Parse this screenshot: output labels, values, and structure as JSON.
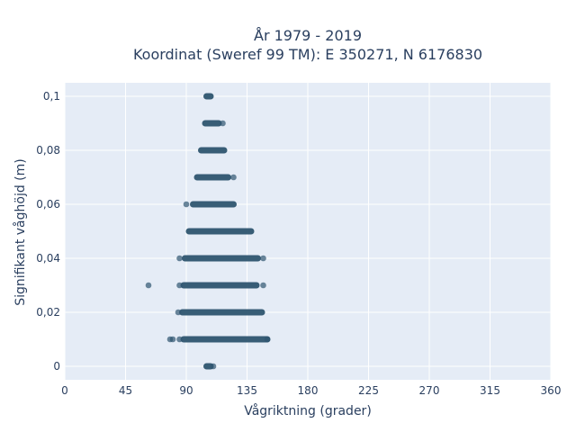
{
  "chart_data": {
    "type": "scatter",
    "title_line1": "År 1979 - 2019",
    "title_line2": "Koordinat (Sweref 99 TM): E 350271, N 6176830",
    "xlabel": "Vågriktning (grader)",
    "ylabel": "Signifikant våghöjd (m)",
    "xlim": [
      0,
      360
    ],
    "ylim": [
      -0.005,
      0.105
    ],
    "x_ticks": [
      0,
      45,
      90,
      135,
      180,
      225,
      270,
      315,
      360
    ],
    "x_tick_labels": [
      "0",
      "45",
      "90",
      "135",
      "180",
      "225",
      "270",
      "315",
      "360"
    ],
    "y_ticks": [
      0,
      0.02,
      0.04,
      0.06,
      0.08,
      0.1
    ],
    "y_tick_labels": [
      "0",
      "0,02",
      "0,04",
      "0,06",
      "0,08",
      "0,1"
    ],
    "grid": true,
    "marker_color": "#2f5670",
    "bands": [
      {
        "y": 0.0,
        "x_min": 105,
        "x_max": 108
      },
      {
        "y": 0.01,
        "x_min": 88,
        "x_max": 150
      },
      {
        "y": 0.02,
        "x_min": 87,
        "x_max": 146
      },
      {
        "y": 0.03,
        "x_min": 88,
        "x_max": 142
      },
      {
        "y": 0.04,
        "x_min": 89,
        "x_max": 143
      },
      {
        "y": 0.05,
        "x_min": 92,
        "x_max": 138
      },
      {
        "y": 0.06,
        "x_min": 95,
        "x_max": 125
      },
      {
        "y": 0.07,
        "x_min": 98,
        "x_max": 121
      },
      {
        "y": 0.08,
        "x_min": 101,
        "x_max": 118
      },
      {
        "y": 0.09,
        "x_min": 104,
        "x_max": 114
      },
      {
        "y": 0.1,
        "x_min": 105,
        "x_max": 108
      }
    ],
    "outliers": [
      {
        "x": 110,
        "y": 0.0
      },
      {
        "x": 78,
        "y": 0.01
      },
      {
        "x": 80,
        "y": 0.01
      },
      {
        "x": 85,
        "y": 0.01
      },
      {
        "x": 150,
        "y": 0.01
      },
      {
        "x": 84,
        "y": 0.02
      },
      {
        "x": 62,
        "y": 0.03
      },
      {
        "x": 85,
        "y": 0.03
      },
      {
        "x": 147,
        "y": 0.03
      },
      {
        "x": 85,
        "y": 0.04
      },
      {
        "x": 147,
        "y": 0.04
      },
      {
        "x": 90,
        "y": 0.06
      },
      {
        "x": 125,
        "y": 0.07
      },
      {
        "x": 117,
        "y": 0.09
      }
    ]
  }
}
